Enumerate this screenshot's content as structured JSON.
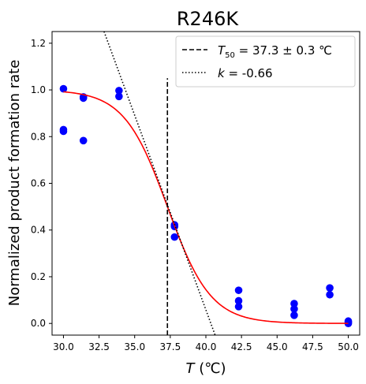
{
  "chart_data": {
    "type": "scatter",
    "title": "R246K",
    "xlabel_var": "T",
    "xlabel_unit": " (℃)",
    "ylabel": "Normalized product formation rate",
    "xlim": [
      29.2,
      50.8
    ],
    "ylim": [
      -0.05,
      1.25
    ],
    "xticks": [
      30.0,
      32.5,
      35.0,
      37.5,
      40.0,
      42.5,
      45.0,
      47.5,
      50.0
    ],
    "xtick_labels": [
      "30.0",
      "32.5",
      "35.0",
      "37.5",
      "40.0",
      "42.5",
      "45.0",
      "47.5",
      "50.0"
    ],
    "yticks": [
      0.0,
      0.2,
      0.4,
      0.6,
      0.8,
      1.0,
      1.2
    ],
    "ytick_labels": [
      "0.0",
      "0.2",
      "0.4",
      "0.6",
      "0.8",
      "1.0",
      "1.2"
    ],
    "grid": false,
    "legend_position": "top-right",
    "points": {
      "color": "#0000ff",
      "x": [
        30.0,
        30.0,
        30.0,
        31.4,
        31.4,
        31.4,
        33.9,
        33.9,
        37.8,
        37.8,
        37.8,
        42.3,
        42.3,
        42.3,
        46.2,
        46.2,
        46.2,
        48.7,
        48.7,
        50.0,
        50.0,
        50.0
      ],
      "y": [
        1.005,
        0.83,
        0.823,
        0.97,
        0.965,
        0.783,
        0.997,
        0.972,
        0.422,
        0.415,
        0.37,
        0.142,
        0.097,
        0.072,
        0.085,
        0.062,
        0.035,
        0.152,
        0.123,
        0.01,
        0.005,
        0.0
      ]
    },
    "fit_curve": {
      "color": "#ff0000",
      "model": "logistic",
      "top": 1.0,
      "bottom": 0.0,
      "midpoint": 37.3,
      "width": 1.52,
      "x_range": [
        30.0,
        50.0
      ]
    },
    "t50_line": {
      "x": 37.3,
      "y_range": [
        -0.05,
        1.05
      ],
      "style": "dashed",
      "legend_prefix": "T",
      "legend_subscript": "50",
      "legend_suffix": " = 37.3 ± 0.3 ℃"
    },
    "slope_line": {
      "style": "dotted",
      "slope_value": -0.66,
      "x_range": [
        32.85,
        40.65
      ],
      "y_at_start": 1.25,
      "y_at_end": -0.05,
      "legend_var": "k",
      "legend_suffix": " = -0.66"
    }
  }
}
